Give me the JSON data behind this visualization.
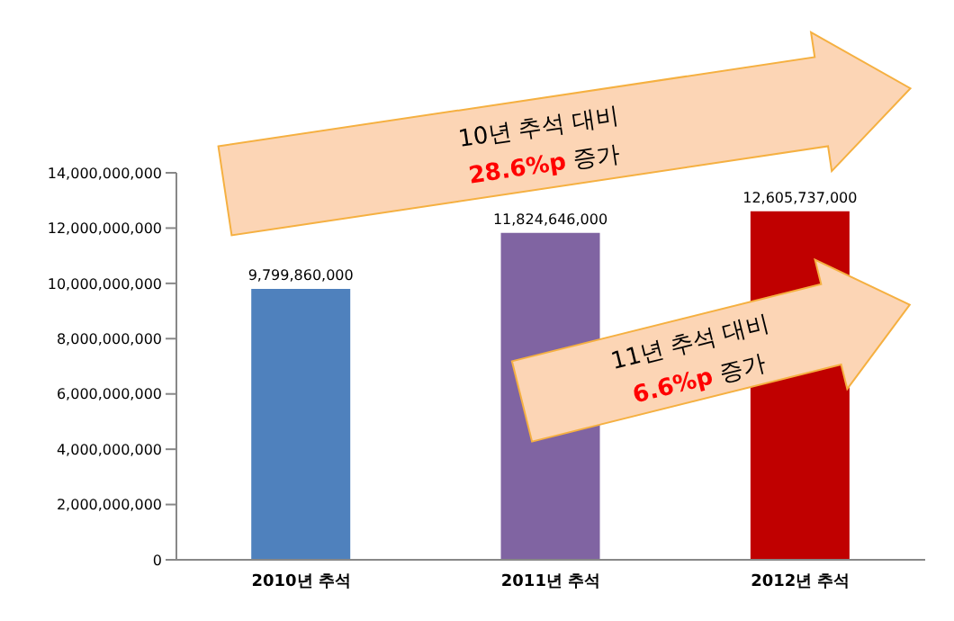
{
  "chart_data": {
    "type": "bar",
    "categories": [
      "2010년 추석",
      "2011년 추석",
      "2012년 추석"
    ],
    "values": [
      9799860000,
      11824646000,
      12605737000
    ],
    "value_labels": [
      "9,799,860,000",
      "11,824,646,000",
      "12,605,737,000"
    ],
    "colors": [
      "#4f81bd",
      "#8064a2",
      "#c00000"
    ],
    "ylim": [
      0,
      14000000000
    ],
    "yticks": [
      0,
      {
        "value": 2000000000,
        "label": "2,000,000,000"
      },
      {
        "value": 4000000000,
        "label": "4,000,000,000"
      },
      {
        "value": 6000000000,
        "label": "6,000,000,000"
      },
      {
        "value": 8000000000,
        "label": "8,000,000,000"
      },
      {
        "value": 10000000000,
        "label": "10,000,000,000"
      },
      {
        "value": 12000000000,
        "label": "12,000,000,000"
      },
      {
        "value": 14000000000,
        "label": "14,000,000,000"
      }
    ],
    "annotations": [
      "10년 추석 대비 28.6%p 증가",
      "11년 추석 대비 6.6%p 증가"
    ]
  }
}
